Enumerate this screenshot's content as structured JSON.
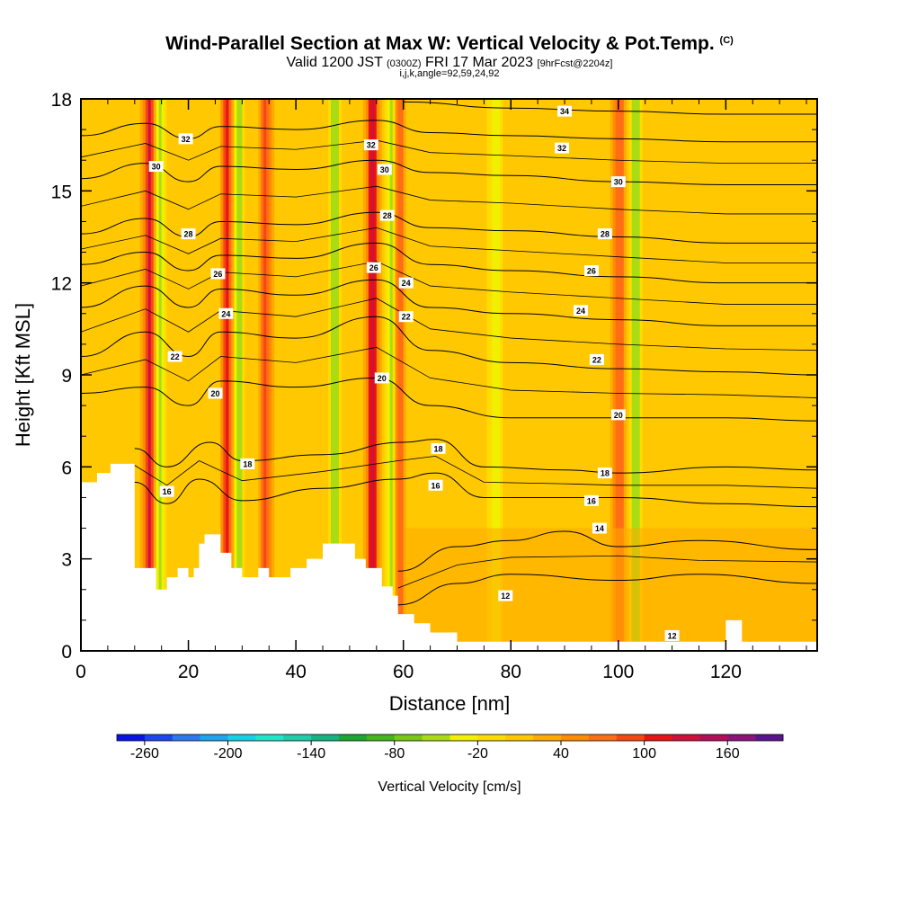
{
  "header": {
    "title_main": "Wind-Parallel Section at Max W: Vertical Velocity & Pot.Temp.",
    "title_unit": "(C)",
    "valid_prefix": "Valid 1200 JST",
    "valid_zulu": "(0300Z)",
    "valid_date": "FRI 17 Mar 2023",
    "forecast": "[9hrFcst@2204z]",
    "ijk": "i,j,k,angle=92,59,24,92"
  },
  "chart_data": {
    "type": "heatmap",
    "xlabel": "Distance [nm]",
    "ylabel": "Height [Kft MSL]",
    "xlim": [
      0,
      137
    ],
    "ylim": [
      0,
      18
    ],
    "x_ticks": [
      0,
      20,
      40,
      60,
      80,
      100,
      120
    ],
    "y_ticks": [
      0,
      3,
      6,
      9,
      12,
      15,
      18
    ],
    "colorbar": {
      "label": "Vertical Velocity [cm/s]",
      "ticks": [
        -260,
        -200,
        -140,
        -80,
        -20,
        40,
        100,
        160
      ],
      "range": [
        -280,
        200
      ],
      "colors": [
        "#0a14e6",
        "#1e46f0",
        "#2d78f0",
        "#1ea5eb",
        "#14d2e6",
        "#1ee6c8",
        "#1ecdaa",
        "#14b482",
        "#1ea532",
        "#46b41e",
        "#78c814",
        "#aadc14",
        "#f0f000",
        "#ffdc00",
        "#ffc800",
        "#ffaa00",
        "#ff8c00",
        "#ff6e14",
        "#f54614",
        "#e61414",
        "#d2103c",
        "#b40e5a",
        "#8c1478",
        "#5a148c"
      ]
    },
    "updraft_cores": [
      {
        "x": 12.5,
        "w": 120
      },
      {
        "x": 27,
        "w": 100
      },
      {
        "x": 34,
        "w": 80
      },
      {
        "x": 54,
        "w": 120
      },
      {
        "x": 59,
        "w": 70
      },
      {
        "x": 100,
        "w": 60
      }
    ],
    "downdraft_cores": [
      {
        "x": 14.5,
        "w": -70
      },
      {
        "x": 29,
        "w": -80
      },
      {
        "x": 47,
        "w": -60
      },
      {
        "x": 57.5,
        "w": -70
      },
      {
        "x": 77,
        "w": -50
      },
      {
        "x": 103,
        "w": -60
      }
    ],
    "terrain": [
      [
        0,
        5.5
      ],
      [
        3,
        5.5
      ],
      [
        3,
        5.8
      ],
      [
        5.5,
        5.8
      ],
      [
        5.5,
        6.1
      ],
      [
        10,
        6.1
      ],
      [
        10,
        2.7
      ],
      [
        14,
        2.7
      ],
      [
        14,
        2.0
      ],
      [
        16,
        2.0
      ],
      [
        16,
        2.4
      ],
      [
        18,
        2.4
      ],
      [
        18,
        2.7
      ],
      [
        20,
        2.7
      ],
      [
        20,
        2.4
      ],
      [
        21,
        2.4
      ],
      [
        21,
        2.7
      ],
      [
        22,
        2.7
      ],
      [
        22,
        3.5
      ],
      [
        23,
        3.5
      ],
      [
        23,
        3.8
      ],
      [
        26,
        3.8
      ],
      [
        26,
        3.2
      ],
      [
        28,
        3.2
      ],
      [
        28,
        2.7
      ],
      [
        30,
        2.7
      ],
      [
        30,
        2.4
      ],
      [
        33,
        2.4
      ],
      [
        33,
        2.7
      ],
      [
        35,
        2.7
      ],
      [
        35,
        2.4
      ],
      [
        39,
        2.4
      ],
      [
        39,
        2.7
      ],
      [
        42,
        2.7
      ],
      [
        42,
        3.0
      ],
      [
        45,
        3.0
      ],
      [
        45,
        3.5
      ],
      [
        51,
        3.5
      ],
      [
        51,
        3.0
      ],
      [
        53,
        3.0
      ],
      [
        53,
        2.7
      ],
      [
        56,
        2.7
      ],
      [
        56,
        2.1
      ],
      [
        58,
        2.1
      ],
      [
        58,
        1.8
      ],
      [
        59,
        1.8
      ],
      [
        59,
        1.2
      ],
      [
        62,
        1.2
      ],
      [
        62,
        0.9
      ],
      [
        65,
        0.9
      ],
      [
        65,
        0.6
      ],
      [
        70,
        0.6
      ],
      [
        70,
        0.3
      ],
      [
        120,
        0.3
      ],
      [
        120,
        1.0
      ],
      [
        123,
        1.0
      ],
      [
        123,
        0.3
      ],
      [
        137,
        0.3
      ]
    ],
    "isentropes": [
      {
        "label": "12",
        "levels": [
          [
            59,
            1.5
          ],
          [
            70,
            2.2
          ],
          [
            80,
            2.5
          ],
          [
            100,
            2.3
          ],
          [
            115,
            2.5
          ],
          [
            137,
            2.2
          ]
        ]
      },
      {
        "label": "14",
        "levels": [
          [
            59,
            2.6
          ],
          [
            70,
            3.4
          ],
          [
            80,
            3.6
          ],
          [
            90,
            3.9
          ],
          [
            100,
            3.4
          ],
          [
            115,
            3.6
          ],
          [
            137,
            3.3
          ]
        ]
      },
      {
        "label": "16",
        "levels": [
          [
            10,
            5.5
          ],
          [
            16,
            4.8
          ],
          [
            22,
            5.6
          ],
          [
            30,
            4.9
          ],
          [
            45,
            5.3
          ],
          [
            59,
            5.6
          ],
          [
            66,
            5.8
          ],
          [
            75,
            5.0
          ],
          [
            90,
            5.0
          ],
          [
            100,
            5.0
          ],
          [
            120,
            4.8
          ],
          [
            137,
            4.7
          ]
        ]
      },
      {
        "label": "18",
        "levels": [
          [
            10,
            6.6
          ],
          [
            16,
            6.0
          ],
          [
            24,
            6.8
          ],
          [
            30,
            6.2
          ],
          [
            45,
            6.4
          ],
          [
            60,
            6.8
          ],
          [
            66,
            6.9
          ],
          [
            75,
            6.0
          ],
          [
            90,
            5.9
          ],
          [
            100,
            5.8
          ],
          [
            120,
            6.0
          ],
          [
            137,
            5.9
          ]
        ]
      },
      {
        "label": "20",
        "levels": [
          [
            0,
            8.4
          ],
          [
            12,
            8.6
          ],
          [
            20,
            8.0
          ],
          [
            26,
            8.8
          ],
          [
            40,
            8.6
          ],
          [
            55,
            8.9
          ],
          [
            65,
            8.0
          ],
          [
            80,
            7.6
          ],
          [
            100,
            7.6
          ],
          [
            120,
            7.6
          ],
          [
            137,
            7.5
          ]
        ]
      },
      {
        "label": "22",
        "levels": [
          [
            0,
            9.6
          ],
          [
            12,
            10.4
          ],
          [
            20,
            9.6
          ],
          [
            26,
            10.4
          ],
          [
            40,
            10.2
          ],
          [
            55,
            10.9
          ],
          [
            65,
            9.8
          ],
          [
            80,
            9.4
          ],
          [
            100,
            9.2
          ],
          [
            120,
            9.1
          ],
          [
            137,
            9.0
          ]
        ]
      },
      {
        "label": "24",
        "levels": [
          [
            0,
            11.2
          ],
          [
            12,
            11.9
          ],
          [
            20,
            11.2
          ],
          [
            26,
            11.8
          ],
          [
            40,
            11.6
          ],
          [
            55,
            12.1
          ],
          [
            65,
            11.2
          ],
          [
            80,
            11.0
          ],
          [
            100,
            10.8
          ],
          [
            120,
            10.6
          ],
          [
            137,
            10.6
          ]
        ]
      },
      {
        "label": "26",
        "levels": [
          [
            0,
            12.6
          ],
          [
            12,
            13.0
          ],
          [
            20,
            12.4
          ],
          [
            26,
            12.9
          ],
          [
            40,
            12.8
          ],
          [
            55,
            13.3
          ],
          [
            65,
            12.6
          ],
          [
            80,
            12.4
          ],
          [
            100,
            12.2
          ],
          [
            120,
            12.0
          ],
          [
            137,
            12.0
          ]
        ]
      },
      {
        "label": "28",
        "levels": [
          [
            0,
            13.6
          ],
          [
            12,
            14.1
          ],
          [
            20,
            13.5
          ],
          [
            26,
            14.0
          ],
          [
            40,
            13.9
          ],
          [
            55,
            14.3
          ],
          [
            65,
            13.8
          ],
          [
            80,
            13.7
          ],
          [
            100,
            13.5
          ],
          [
            120,
            13.3
          ],
          [
            137,
            13.3
          ]
        ]
      },
      {
        "label": "30",
        "levels": [
          [
            0,
            15.4
          ],
          [
            12,
            15.9
          ],
          [
            20,
            15.3
          ],
          [
            26,
            15.8
          ],
          [
            40,
            15.7
          ],
          [
            55,
            16.0
          ],
          [
            65,
            15.6
          ],
          [
            80,
            15.5
          ],
          [
            100,
            15.3
          ],
          [
            120,
            15.2
          ],
          [
            137,
            15.2
          ]
        ]
      },
      {
        "label": "32",
        "levels": [
          [
            0,
            16.8
          ],
          [
            12,
            17.2
          ],
          [
            20,
            16.7
          ],
          [
            26,
            17.1
          ],
          [
            40,
            17.0
          ],
          [
            55,
            17.3
          ],
          [
            65,
            16.9
          ],
          [
            80,
            16.8
          ],
          [
            100,
            16.7
          ],
          [
            120,
            16.6
          ],
          [
            137,
            16.6
          ]
        ]
      },
      {
        "label": "34",
        "levels": [
          [
            60,
            17.9
          ],
          [
            80,
            17.7
          ],
          [
            100,
            17.6
          ],
          [
            120,
            17.5
          ],
          [
            137,
            17.5
          ]
        ]
      }
    ],
    "contour_labels": [
      {
        "x": 14,
        "y": 15.8,
        "text": "30"
      },
      {
        "x": 19.5,
        "y": 16.7,
        "text": "32"
      },
      {
        "x": 20,
        "y": 13.6,
        "text": "28"
      },
      {
        "x": 25.5,
        "y": 12.3,
        "text": "26"
      },
      {
        "x": 27,
        "y": 11.0,
        "text": "24"
      },
      {
        "x": 17.5,
        "y": 9.6,
        "text": "22"
      },
      {
        "x": 25,
        "y": 8.4,
        "text": "20"
      },
      {
        "x": 31,
        "y": 6.1,
        "text": "18"
      },
      {
        "x": 16,
        "y": 5.2,
        "text": "16"
      },
      {
        "x": 54,
        "y": 16.5,
        "text": "32"
      },
      {
        "x": 56.5,
        "y": 15.7,
        "text": "30"
      },
      {
        "x": 57,
        "y": 14.2,
        "text": "28"
      },
      {
        "x": 54.5,
        "y": 12.5,
        "text": "26"
      },
      {
        "x": 60.5,
        "y": 12.0,
        "text": "24"
      },
      {
        "x": 60.5,
        "y": 10.9,
        "text": "22"
      },
      {
        "x": 56,
        "y": 8.9,
        "text": "20"
      },
      {
        "x": 66.5,
        "y": 6.6,
        "text": "18"
      },
      {
        "x": 66,
        "y": 5.4,
        "text": "16"
      },
      {
        "x": 90,
        "y": 17.6,
        "text": "34"
      },
      {
        "x": 89.5,
        "y": 16.4,
        "text": "32"
      },
      {
        "x": 100,
        "y": 15.3,
        "text": "30"
      },
      {
        "x": 97.5,
        "y": 13.6,
        "text": "28"
      },
      {
        "x": 95,
        "y": 12.4,
        "text": "26"
      },
      {
        "x": 93,
        "y": 11.1,
        "text": "24"
      },
      {
        "x": 96,
        "y": 9.5,
        "text": "22"
      },
      {
        "x": 100,
        "y": 7.7,
        "text": "20"
      },
      {
        "x": 97.5,
        "y": 5.8,
        "text": "18"
      },
      {
        "x": 95,
        "y": 4.9,
        "text": "16"
      },
      {
        "x": 96.5,
        "y": 4.0,
        "text": "14"
      },
      {
        "x": 79,
        "y": 1.8,
        "text": "12"
      },
      {
        "x": 110,
        "y": 0.5,
        "text": "12"
      }
    ]
  }
}
